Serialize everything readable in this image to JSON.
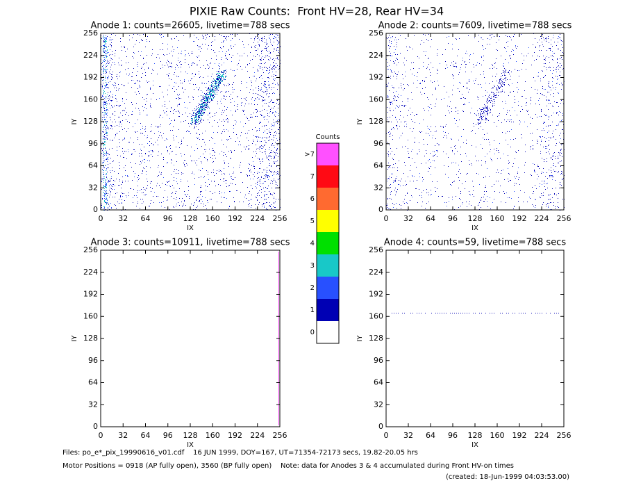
{
  "title": "PIXIE Raw Counts:  Front HV=28, Rear HV=34",
  "chart_data": [
    {
      "type": "image",
      "title": "Anode 1: counts=26605, livetime=788 secs",
      "xlabel": "IX",
      "ylabel": "IY",
      "xlim": [
        0,
        256
      ],
      "ylim": [
        0,
        256
      ],
      "xticks": [
        0,
        32,
        64,
        96,
        128,
        160,
        192,
        224,
        256
      ],
      "yticks": [
        0,
        32,
        64,
        96,
        128,
        160,
        192,
        224,
        256
      ]
    },
    {
      "type": "image",
      "title": "Anode 2: counts=7609, livetime=788 secs",
      "xlabel": "IX",
      "ylabel": "IY",
      "xlim": [
        0,
        256
      ],
      "ylim": [
        0,
        256
      ],
      "xticks": [
        0,
        32,
        64,
        96,
        128,
        160,
        192,
        224,
        256
      ],
      "yticks": [
        0,
        32,
        64,
        96,
        128,
        160,
        192,
        224,
        256
      ]
    },
    {
      "type": "image",
      "title": "Anode 3: counts=10911, livetime=788 secs",
      "xlabel": "IX",
      "ylabel": "IY",
      "xlim": [
        0,
        256
      ],
      "ylim": [
        0,
        256
      ],
      "xticks": [
        0,
        32,
        64,
        96,
        128,
        160,
        192,
        224,
        256
      ],
      "yticks": [
        0,
        32,
        64,
        96,
        128,
        160,
        192,
        224,
        256
      ]
    },
    {
      "type": "image",
      "title": "Anode 4: counts=59, livetime=788 secs",
      "xlabel": "IX",
      "ylabel": "IY",
      "xlim": [
        0,
        256
      ],
      "ylim": [
        0,
        256
      ],
      "xticks": [
        0,
        32,
        64,
        96,
        128,
        160,
        192,
        224,
        256
      ],
      "yticks": [
        0,
        32,
        64,
        96,
        128,
        160,
        192,
        224,
        256
      ]
    }
  ],
  "colorbar": {
    "title": "Counts",
    "labels": [
      0,
      1,
      2,
      3,
      4,
      5,
      6,
      7,
      ">7"
    ],
    "colors": [
      "#ffffff",
      "#0000b4",
      "#2850ff",
      "#18c8c8",
      "#00e000",
      "#ffff00",
      "#ff6a30",
      "#ff0a14",
      "#ff50ff"
    ]
  },
  "footer": {
    "files": "Files: po_e*_pix_19990616_v01.cdf    16 JUN 1999, DOY=167, UT=71354-72173 secs, 19.82-20.05 hrs",
    "motor": "Motor Positions = 0918 (AP fully open), 3560 (BP fully open)    Note: data for Anodes 3 & 4 accumulated during Front HV-on times",
    "created": "(created: 18-Jun-1999 04:03:53.00)"
  }
}
